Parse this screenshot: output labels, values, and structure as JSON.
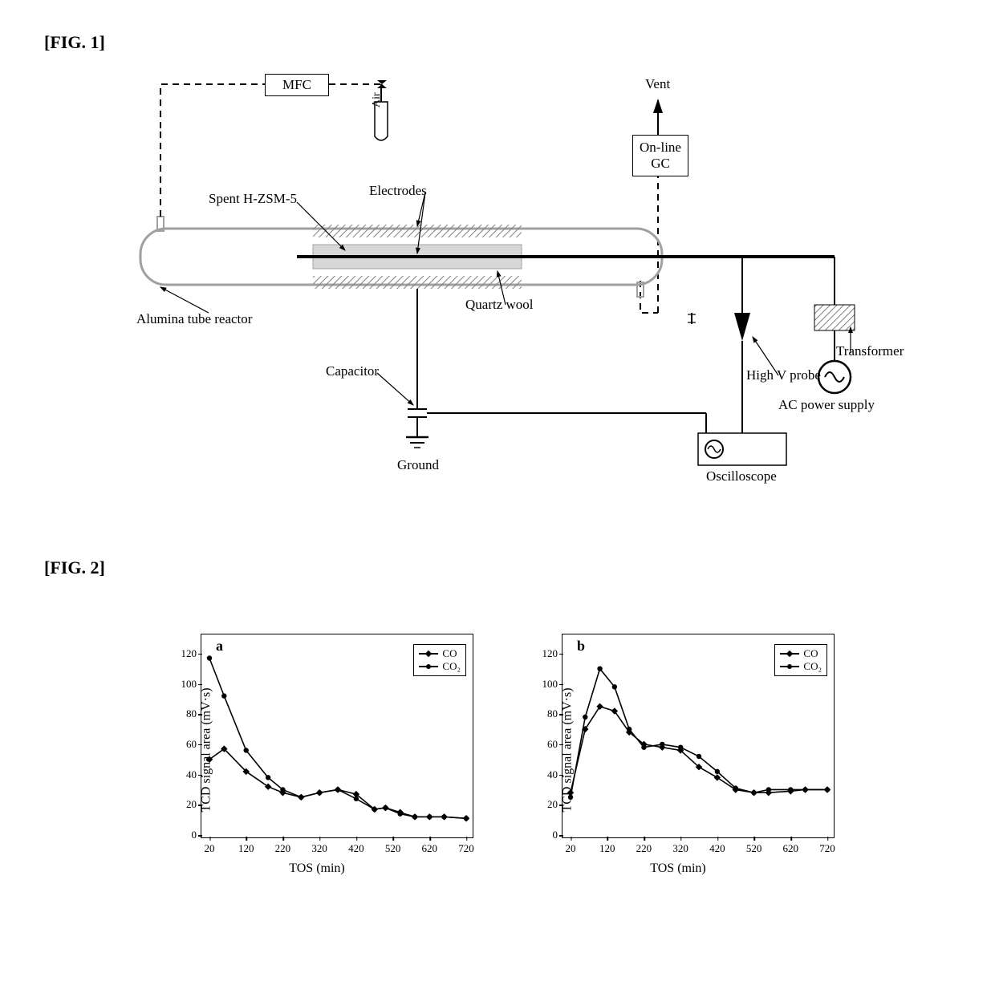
{
  "figure1": {
    "caption": "[FIG. 1]",
    "labels": {
      "mfc": "MFC",
      "air": "Air",
      "vent": "Vent",
      "online_gc": "On-line\nGC",
      "spent": "Spent H-ZSM-5",
      "electrodes": "Electrodes",
      "alumina": "Alumina tube reactor",
      "quartz": "Quartz wool",
      "capacitor": "Capacitor",
      "ground": "Ground",
      "highv": "High V probe",
      "transformer": "Transformer",
      "ac": "AC power supply",
      "oscilloscope": "Oscilloscope"
    },
    "colors": {
      "hatch": "#808080",
      "line": "#000000",
      "reactor_fill": "#dcdcdc"
    }
  },
  "figure2": {
    "caption": "[FIG. 2]",
    "xlabel": "TOS (min)",
    "ylabel": "TCD signal area (mV·s)",
    "xlim": [
      20,
      720
    ],
    "xtick_step": 100,
    "ylim": [
      0,
      130
    ],
    "yticks": [
      0,
      20,
      40,
      60,
      80,
      100,
      120
    ],
    "xticks": [
      20,
      120,
      220,
      320,
      420,
      520,
      620,
      720
    ],
    "legend_items": [
      "CO",
      "CO₂"
    ],
    "colors": {
      "series": "#000000",
      "border": "#000000",
      "background": "#ffffff"
    },
    "panel_a": {
      "letter": "a",
      "co": {
        "x": [
          20,
          60,
          120,
          180,
          220,
          270,
          320,
          370,
          420,
          470,
          500,
          540,
          580,
          620,
          660,
          720
        ],
        "y": [
          50,
          57,
          42,
          32,
          28,
          25,
          28,
          30,
          27,
          17,
          18,
          15,
          12,
          12,
          12,
          11
        ]
      },
      "co2": {
        "x": [
          20,
          60,
          120,
          180,
          220,
          270,
          320,
          370,
          420,
          470,
          500,
          540,
          580,
          620,
          660,
          720
        ],
        "y": [
          117,
          92,
          56,
          38,
          30,
          25,
          28,
          30,
          24,
          17,
          18,
          14,
          12,
          12,
          12,
          11
        ]
      }
    },
    "panel_b": {
      "letter": "b",
      "co": {
        "x": [
          20,
          60,
          100,
          140,
          180,
          220,
          270,
          320,
          370,
          420,
          470,
          520,
          560,
          620,
          660,
          720
        ],
        "y": [
          28,
          70,
          85,
          82,
          68,
          60,
          58,
          56,
          45,
          38,
          30,
          28,
          28,
          29,
          30,
          30
        ]
      },
      "co2": {
        "x": [
          20,
          60,
          100,
          140,
          180,
          220,
          270,
          320,
          370,
          420,
          470,
          520,
          560,
          620,
          660,
          720
        ],
        "y": [
          25,
          78,
          110,
          98,
          70,
          58,
          60,
          58,
          52,
          42,
          31,
          28,
          30,
          30,
          30,
          30
        ]
      }
    }
  }
}
